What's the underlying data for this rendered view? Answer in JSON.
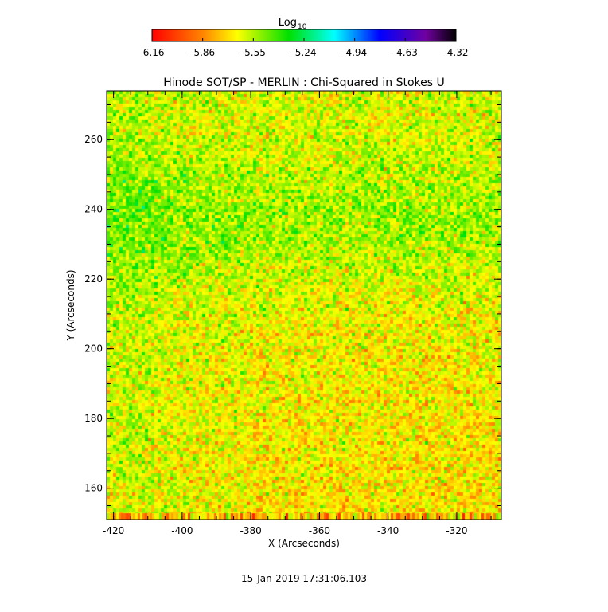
{
  "colorbar": {
    "label": "Log",
    "label_sub": "10",
    "ticks": [
      "-6.16",
      "-5.86",
      "-5.55",
      "-5.24",
      "-4.94",
      "-4.63",
      "-4.32"
    ]
  },
  "chart_data": {
    "type": "heatmap",
    "title": "Hinode SOT/SP - MERLIN : Chi-Squared in Stokes U",
    "xlabel": "X (Arcseconds)",
    "ylabel": "Y (Arcseconds)",
    "xlim": [
      -422,
      -307
    ],
    "ylim": [
      151,
      274
    ],
    "xticks": [
      -420,
      -400,
      -380,
      -360,
      -340,
      -320
    ],
    "xtick_labels": [
      "-420",
      "-400",
      "-380",
      "-360",
      "-340",
      "-320"
    ],
    "yticks": [
      160,
      180,
      200,
      220,
      240,
      260
    ],
    "ytick_labels": [
      "160",
      "180",
      "200",
      "220",
      "240",
      "260"
    ],
    "colorscale_range": [
      -6.16,
      -4.32
    ],
    "colorscale": "rainbow (red to black)",
    "typical_value_range": [
      -5.75,
      -5.3
    ]
  },
  "footer": {
    "timestamp": "15-Jan-2019 17:31:06.103"
  }
}
